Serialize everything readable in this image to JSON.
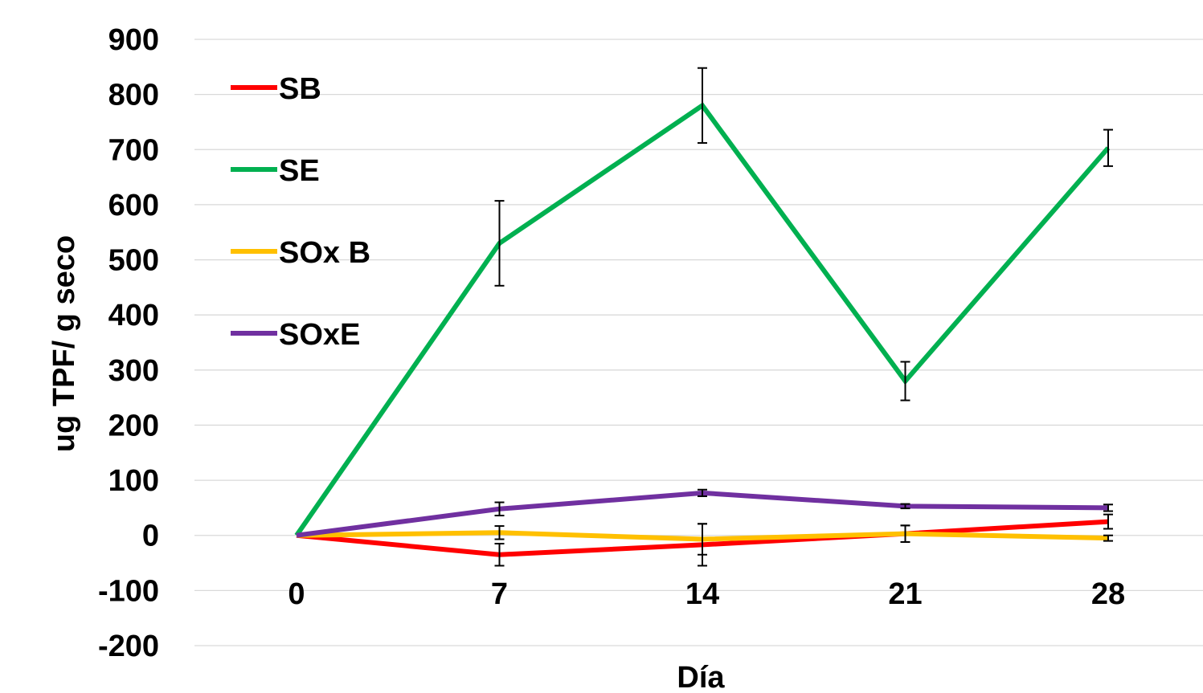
{
  "chart_data": {
    "type": "line",
    "xlabel": "Día",
    "ylabel": "ug TPF/ g seco",
    "x": [
      "0",
      "7",
      "14",
      "21",
      "28"
    ],
    "ylim": [
      -200,
      900
    ],
    "yticks": [
      -200,
      -100,
      0,
      100,
      200,
      300,
      400,
      500,
      600,
      700,
      800,
      900
    ],
    "grid": true,
    "legend_position": "top-left",
    "series": [
      {
        "name": "SB",
        "color": "#ff0000",
        "values": [
          0,
          -35,
          -17,
          3,
          25
        ],
        "errors": [
          0,
          20,
          38,
          15,
          13
        ]
      },
      {
        "name": "SE",
        "color": "#00b050",
        "values": [
          0,
          530,
          780,
          280,
          703
        ],
        "errors": [
          0,
          77,
          68,
          35,
          33
        ]
      },
      {
        "name": "SOx B",
        "color": "#ffc000",
        "values": [
          0,
          5,
          -7,
          3,
          -5
        ],
        "errors": [
          0,
          12,
          28,
          15,
          5
        ]
      },
      {
        "name": "SOxE",
        "color": "#7030a0",
        "values": [
          0,
          48,
          77,
          53,
          50
        ],
        "errors": [
          0,
          12,
          6,
          4,
          6
        ]
      }
    ]
  }
}
